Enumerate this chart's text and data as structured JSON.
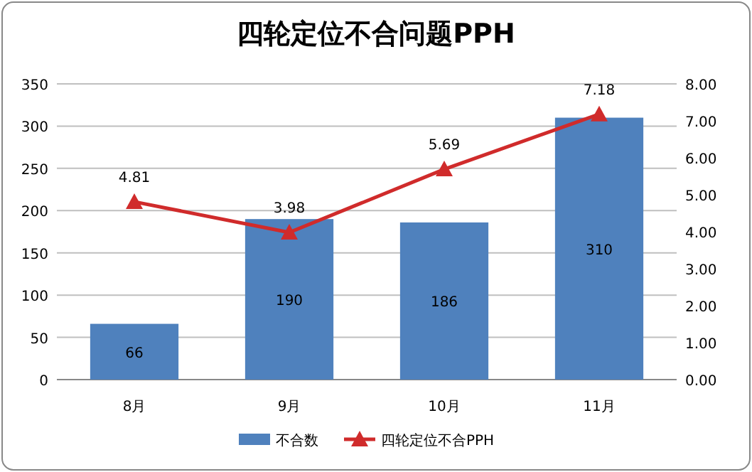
{
  "chart_data": {
    "type": "bar",
    "title": "四轮定位不合问题PPH",
    "categories": [
      "8月",
      "9月",
      "10月",
      "11月"
    ],
    "series": [
      {
        "name": "不合数",
        "color": "#4f81bd",
        "values": [
          66,
          190,
          186,
          310
        ]
      },
      {
        "name": "四轮定位不合PPH",
        "type": "line",
        "axis": "y2",
        "color": "#d02b2b",
        "marker": "triangle",
        "values": [
          4.81,
          3.98,
          5.69,
          7.18
        ]
      }
    ],
    "ylim": [
      0,
      350
    ],
    "yticks": [
      0,
      50,
      100,
      150,
      200,
      250,
      300,
      350
    ],
    "y2lim": [
      0,
      8
    ],
    "y2ticks": [
      {
        "value": 0,
        "label": "0.00"
      },
      {
        "value": 1,
        "label": "1.00"
      },
      {
        "value": 2,
        "label": "2.00"
      },
      {
        "value": 3,
        "label": "3.00"
      },
      {
        "value": 4,
        "label": "4.00"
      },
      {
        "value": 5,
        "label": "5.00"
      },
      {
        "value": 6,
        "label": "6.00"
      },
      {
        "value": 7,
        "label": "7.00"
      },
      {
        "value": 8,
        "label": "8.00"
      }
    ],
    "grid": "y",
    "legend": "bottom",
    "data_labels": true
  }
}
